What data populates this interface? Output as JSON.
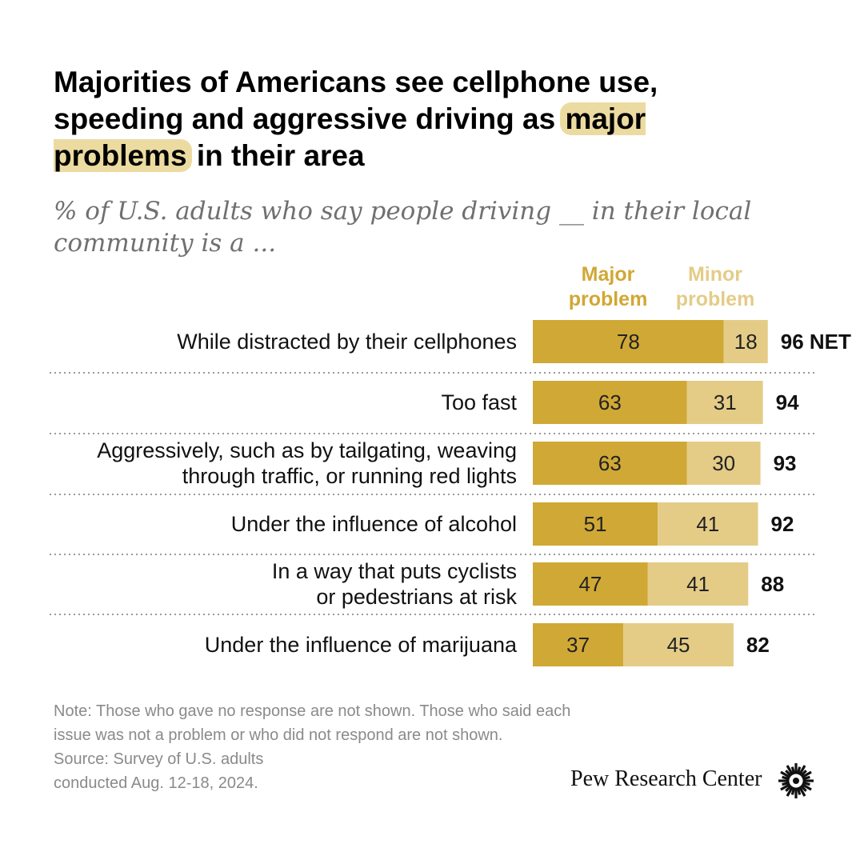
{
  "header": {
    "title_before": "Majorities of Americans see cellphone use, speeding and aggressive driving as",
    "title_highlight": "major problems",
    "title_after": "in their area",
    "subtitle": "% of U.S. adults who say people driving __ in their local community is a ..."
  },
  "legend": {
    "major": "Major\nproblem",
    "minor": "Minor\nproblem"
  },
  "colors": {
    "major": "#d0a835",
    "minor": "#e4cc87",
    "divider": "#9a9a9a"
  },
  "chart_data": {
    "type": "bar",
    "stacked": true,
    "orientation": "horizontal",
    "categories": [
      "While distracted by their cellphones",
      "Too fast",
      "Aggressively, such as by tailgating, weaving through traffic, or running red lights",
      "Under the influence of alcohol",
      "In a way that puts cyclists or pedestrians at risk",
      "Under the influence of marijuana"
    ],
    "category_lines": [
      [
        "While distracted by their cellphones"
      ],
      [
        "Too fast"
      ],
      [
        "Aggressively, such as by tailgating, weaving",
        "through traffic, or running red lights"
      ],
      [
        "Under the influence of alcohol"
      ],
      [
        "In a way that puts cyclists",
        "or pedestrians at risk"
      ],
      [
        "Under the influence of marijuana"
      ]
    ],
    "series": [
      {
        "name": "Major problem",
        "values": [
          78,
          63,
          63,
          51,
          47,
          37
        ]
      },
      {
        "name": "Minor problem",
        "values": [
          18,
          31,
          30,
          41,
          41,
          45
        ]
      }
    ],
    "net_values": [
      "96 NET",
      "94",
      "93",
      "92",
      "88",
      "82"
    ],
    "xlim": [
      0,
      100
    ]
  },
  "footer": {
    "note_lines": [
      "Note: Those who gave no response are not shown. Those who said each",
      "issue was not a problem or who did not respond are not shown.",
      "Source: Survey of U.S. adults",
      "conducted Aug. 12-18, 2024."
    ],
    "brand": "Pew Research Center"
  }
}
